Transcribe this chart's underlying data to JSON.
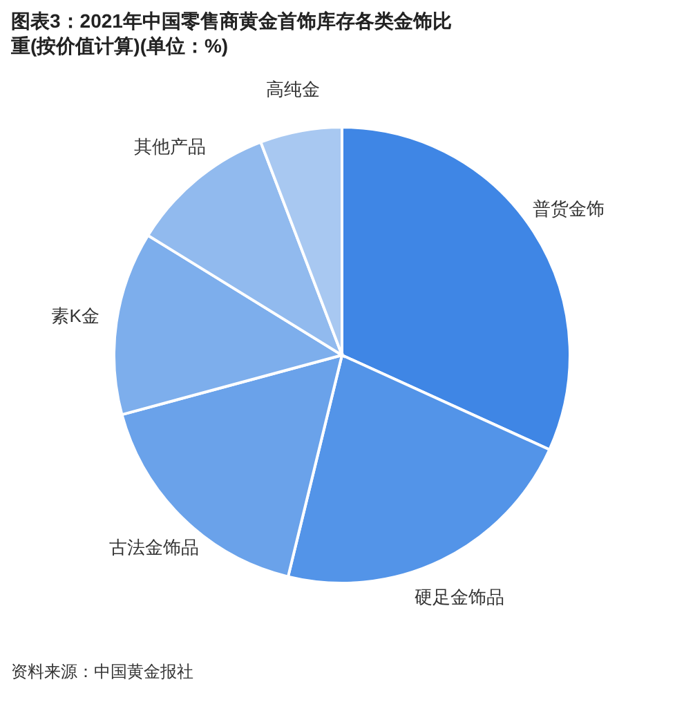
{
  "chart_data": {
    "type": "pie",
    "title": "图表3：2021年中国零售商黄金首饰库存各类金饰比重(按价值计算)(单位：%)",
    "categories": [
      "普货金饰",
      "硬足金饰品",
      "古法金饰品",
      "素K金",
      "其他产品",
      "高纯金"
    ],
    "values": [
      31.8,
      22,
      17,
      13,
      10.4,
      5.8
    ],
    "colors": [
      "#3f86e5",
      "#5394e8",
      "#6aa2ea",
      "#7daeec",
      "#91baee",
      "#a8c8f1"
    ],
    "annotations": [
      "资料来源：中国黄金报社"
    ]
  }
}
